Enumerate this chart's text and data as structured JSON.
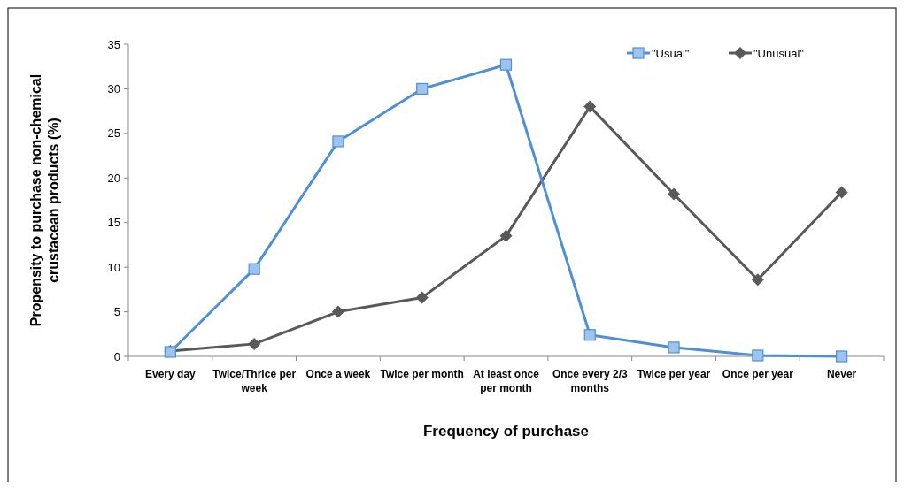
{
  "chart_data": {
    "type": "line",
    "xlabel": "Frequency of purchase",
    "ylabel": "Propensity to purchase non-chemical crustacean products (%)",
    "categories": [
      "Every day",
      "Twice/Thrice per week",
      "Once a week",
      "Twice per month",
      "At least once per month",
      "Once every 2/3 months",
      "Twice per year",
      "Once per year",
      "Never"
    ],
    "series": [
      {
        "name": "\"Usual\"",
        "color": "#4f8fd6",
        "marker": "square",
        "values": [
          0.5,
          9.8,
          24.1,
          30,
          32.7,
          2.4,
          1.0,
          0.1,
          0.0
        ]
      },
      {
        "name": "\"Unusual\"",
        "color": "#595959",
        "marker": "diamond",
        "values": [
          0.6,
          1.4,
          5.0,
          6.6,
          13.5,
          28.0,
          18.2,
          8.6,
          18.4
        ]
      }
    ],
    "ylim": [
      0,
      35
    ],
    "yticks": [
      0,
      5,
      10,
      15,
      20,
      25,
      30,
      35
    ],
    "grid": false,
    "legend": "top right"
  }
}
